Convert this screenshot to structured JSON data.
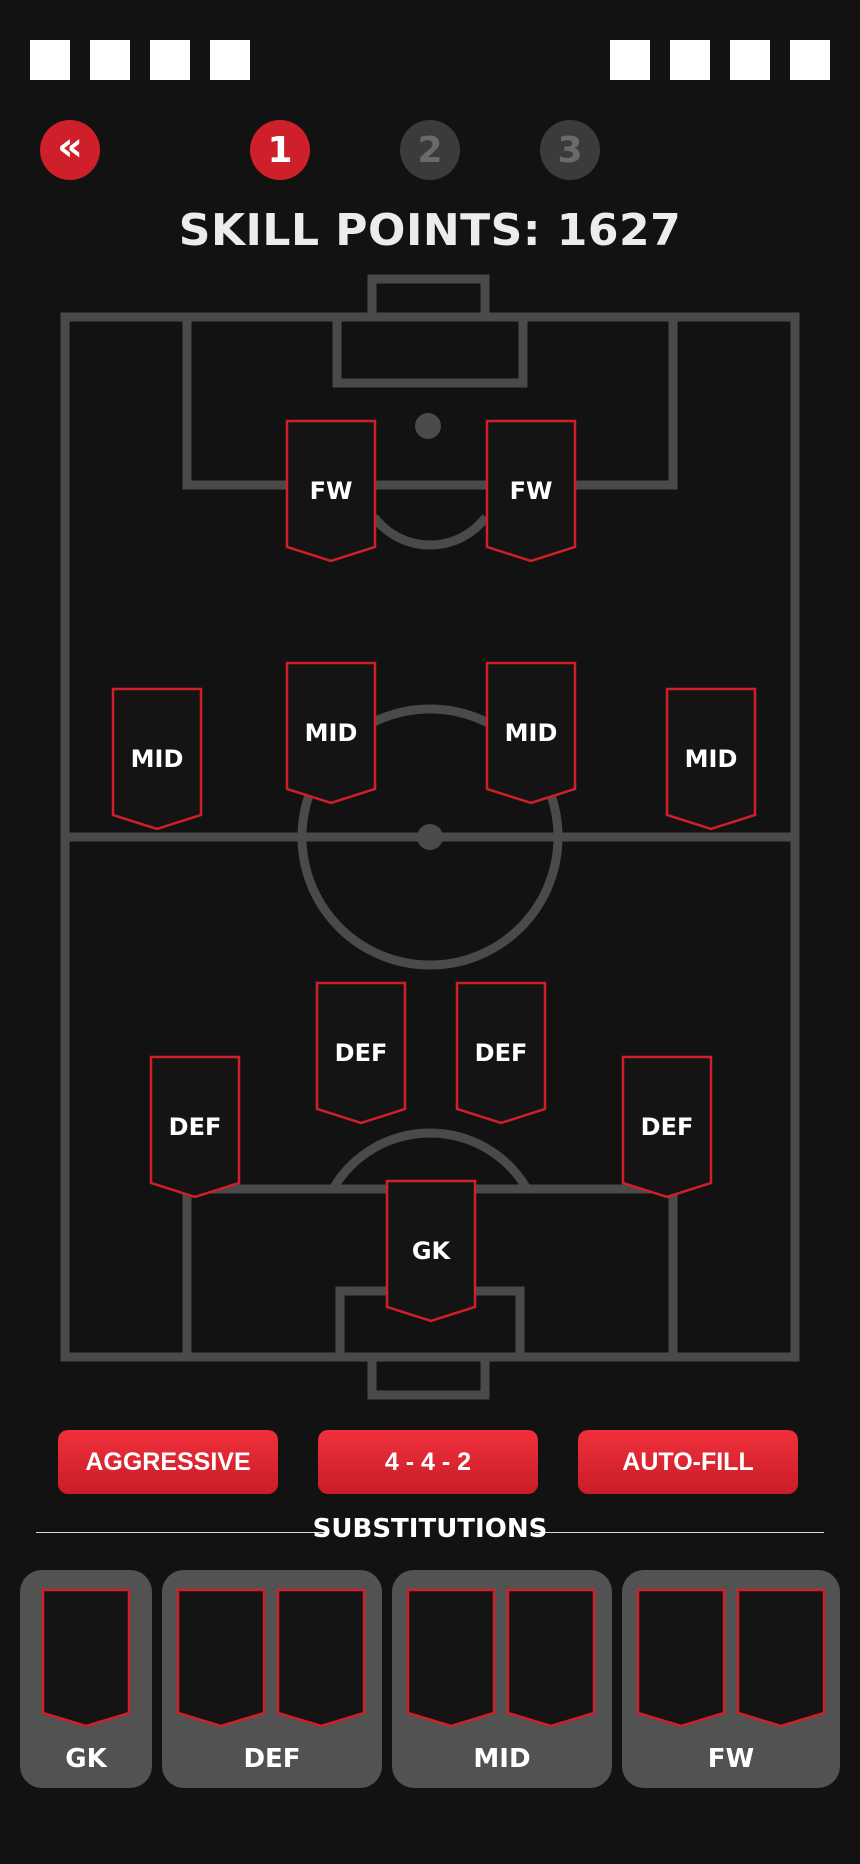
{
  "header": {
    "back_label": "«",
    "steps": [
      {
        "label": "1",
        "active": true
      },
      {
        "label": "2",
        "active": false
      },
      {
        "label": "3",
        "active": false
      }
    ],
    "left_squares": 4,
    "right_squares": 4
  },
  "title": "SKILL POINTS: 1627",
  "positions": {
    "fw_left": "FW",
    "fw_right": "FW",
    "mid_1": "MID",
    "mid_2": "MID",
    "mid_3": "MID",
    "mid_4": "MID",
    "def_1": "DEF",
    "def_2": "DEF",
    "def_3": "DEF",
    "def_4": "DEF",
    "gk": "GK"
  },
  "controls": {
    "style_label": "AGGRESSIVE",
    "formation_label": "4 - 4 - 2",
    "autofill_label": "AUTO-FILL"
  },
  "substitutions": {
    "title": "SUBSTITUTIONS",
    "groups": [
      {
        "label": "GK"
      },
      {
        "label": "DEF"
      },
      {
        "label": "MID"
      },
      {
        "label": "FW"
      }
    ]
  },
  "colors": {
    "accent": "#cf1f2a",
    "pitch_line": "#4a4a4a",
    "background": "#121212"
  }
}
